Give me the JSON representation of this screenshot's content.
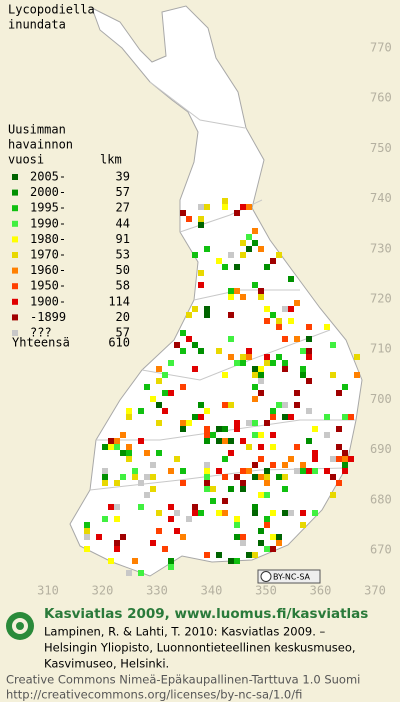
{
  "title": [
    "Lycopodiella",
    "inundata"
  ],
  "legend": {
    "header": [
      "Uusimman",
      "havainnon",
      "vuosi"
    ],
    "count_header": "lkm",
    "rows": [
      {
        "label": "2005-",
        "count": 39,
        "color": "#006400"
      },
      {
        "label": "2000-",
        "count": 57,
        "color": "#009000"
      },
      {
        "label": "1995-",
        "count": 27,
        "color": "#10c010"
      },
      {
        "label": "1990-",
        "count": 44,
        "color": "#40f040"
      },
      {
        "label": "1980-",
        "count": 91,
        "color": "#ffff00"
      },
      {
        "label": "1970-",
        "count": 53,
        "color": "#e8d800"
      },
      {
        "label": "1960-",
        "count": 50,
        "color": "#ff8000"
      },
      {
        "label": "1950-",
        "count": 58,
        "color": "#ff4000"
      },
      {
        "label": "1900-",
        "count": 114,
        "color": "#e00000"
      },
      {
        "label": "-1899",
        "count": 20,
        "color": "#a00000"
      },
      {
        "label": "???",
        "count": 57,
        "color": "#c8c8c8"
      }
    ],
    "total_label": "Yhteensä",
    "total": 610
  },
  "grid": {
    "north": [
      770,
      760,
      750,
      740,
      730,
      720,
      710,
      700,
      690,
      680,
      670
    ],
    "east": [
      310,
      320,
      330,
      340,
      350,
      360,
      370
    ]
  },
  "badge": "BY-NC-SA",
  "footer": {
    "brand": "Kasviatlas 2009, www.luomus.fi/kasviatlas",
    "citation": [
      "Lampinen, R. & Lahti, T. 2010: Kasviatlas 2009. –",
      "Helsingin Yliopisto, Luonnontieteellinen keskusmuseo,",
      "Kasvimuseo, Helsinki."
    ],
    "license": [
      "Creative Commons Nimeä-Epäkaupallinen-Tarttuva 1.0 Suomi",
      "http://creativecommons.org/licenses/by-nc-sa/1.0/fi"
    ]
  }
}
